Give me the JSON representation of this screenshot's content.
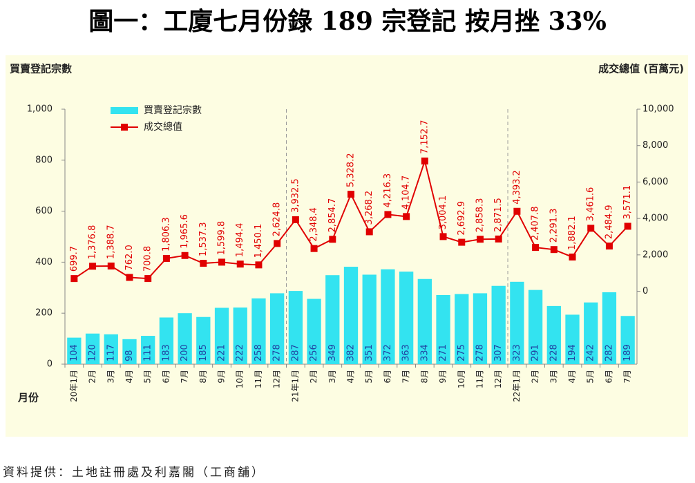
{
  "chart_data": {
    "type": "bar",
    "title": "圖一：工廈七月份錄 189 宗登記 按月挫 33%",
    "y_label": "買賣登記宗數",
    "y2_label": "成交總值 (百萬元)",
    "x_label": "月份",
    "source": "資料提供：土地註冊處及利嘉閣（工商舖）",
    "categories": [
      "20年1月",
      "2月",
      "3月",
      "4月",
      "5月",
      "6月",
      "7月",
      "8月",
      "9月",
      "10月",
      "11月",
      "12月",
      "21年1月",
      "2月",
      "3月",
      "4月",
      "5月",
      "6月",
      "7月",
      "8月",
      "9月",
      "10月",
      "11月",
      "12月",
      "22年1月",
      "2月",
      "3月",
      "4月",
      "5月",
      "6月",
      "7月"
    ],
    "series": [
      {
        "name": "買賣登記宗數",
        "color": "#33e3f0",
        "values": [
          104,
          120,
          117,
          98,
          111,
          183,
          200,
          185,
          221,
          222,
          258,
          278,
          287,
          256,
          349,
          382,
          351,
          372,
          363,
          334,
          271,
          275,
          278,
          307,
          323,
          291,
          228,
          194,
          242,
          282,
          189
        ]
      },
      {
        "name": "成交總值",
        "color": "#e00000",
        "type": "line",
        "axis": "y2",
        "values": [
          699.7,
          1376.8,
          1388.7,
          762.0,
          700.8,
          1806.3,
          1965.6,
          1537.3,
          1599.8,
          1494.4,
          1450.1,
          2624.8,
          3932.5,
          2348.4,
          2854.7,
          5328.2,
          3268.2,
          4216.3,
          4104.7,
          7152.7,
          3004.1,
          2692.9,
          2858.3,
          2871.5,
          4393.2,
          2407.8,
          2291.3,
          1882.1,
          3461.6,
          2484.9,
          3571.1
        ],
        "value_labels": [
          "699.7",
          "1,376.8",
          "1,388.7",
          "762.0",
          "700.8",
          "1,806.3",
          "1,965.6",
          "1,537.3",
          "1,599.8",
          "1,494.4",
          "1,450.1",
          "2,624.8",
          "3,932.5",
          "2,348.4",
          "2,854.7",
          "5,328.2",
          "3,268.2",
          "4,216.3",
          "4,104.7",
          "7,152.7",
          "3,004.1",
          "2,692.9",
          "2,858.3",
          "2,871.5",
          "4,393.2",
          "2,407.8",
          "2,291.3",
          "1,882.1",
          "3,461.6",
          "2,484.9",
          "3,571.1"
        ]
      }
    ],
    "ylim": [
      0,
      1000
    ],
    "yticks": [
      0,
      200,
      400,
      600,
      800,
      {
        "value": 1000,
        "label": "1,000"
      }
    ],
    "y2lim": [
      -4000,
      10000
    ],
    "y2ticks": [
      0,
      {
        "value": 2000,
        "label": "2,000"
      },
      {
        "value": 4000,
        "label": "4,000"
      },
      {
        "value": 6000,
        "label": "6,000"
      },
      {
        "value": 8000,
        "label": "8,000"
      },
      {
        "value": 10000,
        "label": "10,000"
      }
    ],
    "legend": "upper-left"
  }
}
